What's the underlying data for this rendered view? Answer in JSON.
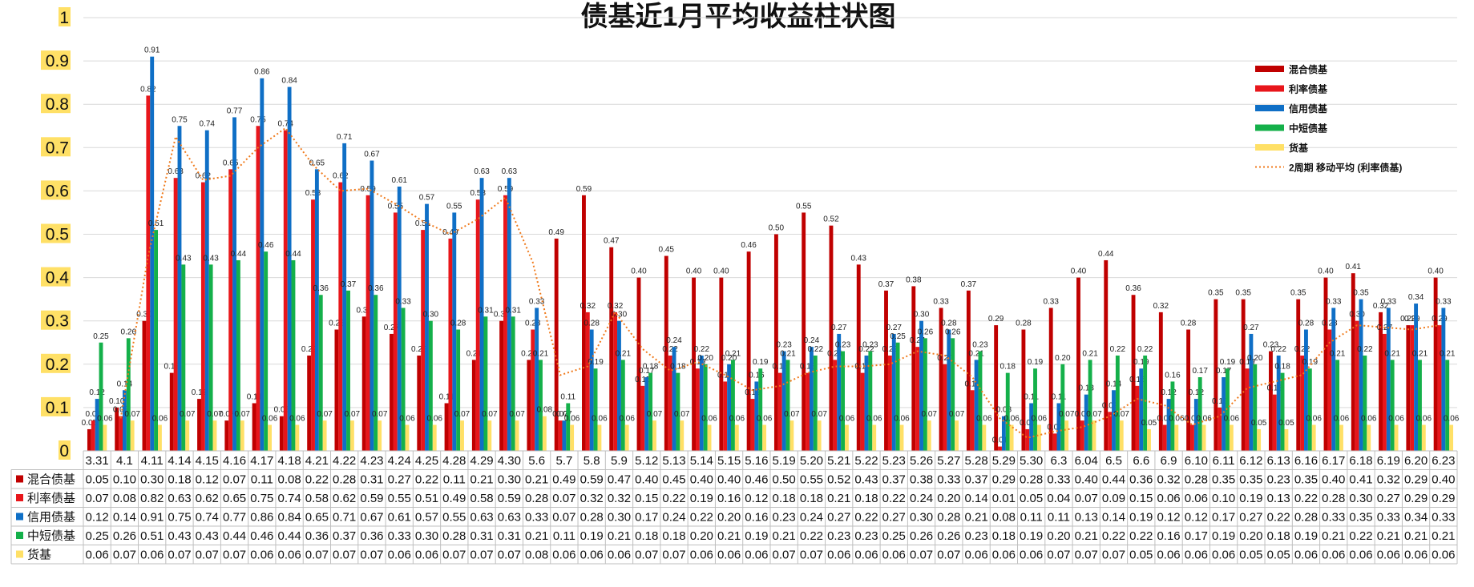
{
  "chart_data": {
    "type": "bar",
    "title": "债基近1月平均收益柱状图",
    "ylim": [
      0,
      1
    ],
    "yticks": [
      "0",
      "0.1",
      "0.2",
      "0.3",
      "0.4",
      "0.5",
      "0.6",
      "0.7",
      "0.8",
      "0.9",
      "1"
    ],
    "grid": true,
    "legend_position": "top-right",
    "categories": [
      "3.31",
      "4.1",
      "4.11",
      "4.14",
      "4.15",
      "4.16",
      "4.17",
      "4.18",
      "4.21",
      "4.22",
      "4.23",
      "4.24",
      "4.25",
      "4.28",
      "4.29",
      "4.30",
      "5.6",
      "5.7",
      "5.8",
      "5.9",
      "5.12",
      "5.13",
      "5.14",
      "5.15",
      "5.16",
      "5.19",
      "5.20",
      "5.21",
      "5.22",
      "5.23",
      "5.26",
      "5.27",
      "5.28",
      "5.29",
      "5.30",
      "6.3",
      "6.04",
      "6.5",
      "6.6",
      "6.9",
      "6.10",
      "6.11",
      "6.12",
      "6.13",
      "6.16",
      "6.17",
      "6.18",
      "6.19",
      "6.20",
      "6.23"
    ],
    "series": [
      {
        "name": "混合债基",
        "color": "#c00000",
        "values": [
          0.05,
          0.1,
          0.3,
          0.18,
          0.12,
          0.07,
          0.11,
          0.08,
          0.22,
          0.28,
          0.31,
          0.27,
          0.22,
          0.11,
          0.21,
          0.3,
          0.21,
          0.49,
          0.59,
          0.47,
          0.4,
          0.45,
          0.4,
          0.4,
          0.46,
          0.5,
          0.55,
          0.52,
          0.43,
          0.37,
          0.38,
          0.33,
          0.37,
          0.29,
          0.28,
          0.33,
          0.4,
          0.44,
          0.36,
          0.32,
          0.28,
          0.35,
          0.35,
          0.23,
          0.35,
          0.4,
          0.41,
          0.32,
          0.29,
          0.4
        ],
        "labels": [
          "0.05",
          "0.10",
          "0.30",
          "0.18",
          "0.12",
          "0.07",
          "0.11",
          "0.08",
          "0.22",
          "0.28",
          "0.31",
          "0.27",
          "0.22",
          "0.11",
          "0.21",
          "0.30",
          "0.21",
          "0.49",
          "0.59",
          "0.47",
          "0.40",
          "0.45",
          "0.40",
          "0.40",
          "0.46",
          "0.50",
          "0.55",
          "0.52",
          "0.43",
          "0.37",
          "0.38",
          "0.33",
          "0.37",
          "0.29",
          "0.28",
          "0.33",
          "0.40",
          "0.44",
          "0.36",
          "0.32",
          "0.28",
          "0.35",
          "0.35",
          "0.23",
          "0.35",
          "0.40",
          "0.41",
          "0.32",
          "0.29",
          "0.40"
        ]
      },
      {
        "name": "利率债基",
        "color": "#e8161b",
        "values": [
          0.07,
          0.08,
          0.82,
          0.63,
          0.62,
          0.65,
          0.75,
          0.74,
          0.58,
          0.62,
          0.59,
          0.55,
          0.51,
          0.49,
          0.58,
          0.59,
          0.28,
          0.07,
          0.32,
          0.32,
          0.15,
          0.22,
          0.19,
          0.16,
          0.12,
          0.18,
          0.18,
          0.21,
          0.18,
          0.22,
          0.24,
          0.2,
          0.14,
          0.01,
          0.05,
          0.04,
          0.07,
          0.09,
          0.15,
          0.06,
          0.06,
          0.1,
          0.19,
          0.13,
          0.22,
          0.28,
          0.3,
          0.27,
          0.29,
          0.29
        ],
        "labels": [
          "0.07",
          "0.08",
          "0.82",
          "0.63",
          "0.62",
          "0.65",
          "0.75",
          "0.74",
          "0.58",
          "0.62",
          "0.59",
          "0.55",
          "0.51",
          "0.49",
          "0.58",
          "0.59",
          "0.28",
          "0.07",
          "0.32",
          "0.32",
          "0.15",
          "0.22",
          "0.19",
          "0.16",
          "0.12",
          "0.18",
          "0.18",
          "0.21",
          "0.18",
          "0.22",
          "0.24",
          "0.20",
          "0.14",
          "0.01",
          "0.05",
          "0.04",
          "0.07",
          "0.09",
          "0.15",
          "0.06",
          "0.06",
          "0.10",
          "0.19",
          "0.13",
          "0.22",
          "0.28",
          "0.30",
          "0.27",
          "0.29",
          "0.29"
        ]
      },
      {
        "name": "信用债基",
        "color": "#0f6fc6",
        "values": [
          0.12,
          0.14,
          0.91,
          0.75,
          0.74,
          0.77,
          0.86,
          0.84,
          0.65,
          0.71,
          0.67,
          0.61,
          0.57,
          0.55,
          0.63,
          0.63,
          0.33,
          0.07,
          0.28,
          0.3,
          0.17,
          0.24,
          0.22,
          0.2,
          0.16,
          0.23,
          0.24,
          0.27,
          0.22,
          0.27,
          0.3,
          0.28,
          0.21,
          0.08,
          0.11,
          0.11,
          0.13,
          0.14,
          0.19,
          0.12,
          0.12,
          0.17,
          0.27,
          0.22,
          0.28,
          0.33,
          0.35,
          0.33,
          0.34,
          0.33
        ],
        "labels": [
          "0.12",
          "0.14",
          "0.91",
          "0.75",
          "0.74",
          "0.77",
          "0.86",
          "0.84",
          "0.65",
          "0.71",
          "0.67",
          "0.61",
          "0.57",
          "0.55",
          "0.63",
          "0.63",
          "0.33",
          "0.07",
          "0.28",
          "0.30",
          "0.17",
          "0.24",
          "0.22",
          "0.20",
          "0.16",
          "0.23",
          "0.24",
          "0.27",
          "0.22",
          "0.27",
          "0.30",
          "0.28",
          "0.21",
          "0.08",
          "0.11",
          "0.11",
          "0.13",
          "0.14",
          "0.19",
          "0.12",
          "0.12",
          "0.17",
          "0.27",
          "0.22",
          "0.28",
          "0.33",
          "0.35",
          "0.33",
          "0.34",
          "0.33"
        ]
      },
      {
        "name": "中短债基",
        "color": "#14b04a",
        "values": [
          0.25,
          0.26,
          0.51,
          0.43,
          0.43,
          0.44,
          0.46,
          0.44,
          0.36,
          0.37,
          0.36,
          0.33,
          0.3,
          0.28,
          0.31,
          0.31,
          0.21,
          0.11,
          0.19,
          0.21,
          0.18,
          0.18,
          0.2,
          0.21,
          0.19,
          0.21,
          0.22,
          0.23,
          0.23,
          0.25,
          0.26,
          0.26,
          0.23,
          0.18,
          0.19,
          0.2,
          0.21,
          0.22,
          0.22,
          0.16,
          0.17,
          0.19,
          0.2,
          0.18,
          0.19,
          0.21,
          0.22,
          0.21,
          0.21,
          0.21
        ],
        "labels": [
          "0.25",
          "0.26",
          "0.51",
          "0.43",
          "0.43",
          "0.44",
          "0.46",
          "0.44",
          "0.36",
          "0.37",
          "0.36",
          "0.33",
          "0.30",
          "0.28",
          "0.31",
          "0.31",
          "0.21",
          "0.11",
          "0.19",
          "0.21",
          "0.18",
          "0.18",
          "0.20",
          "0.21",
          "0.19",
          "0.21",
          "0.22",
          "0.23",
          "0.23",
          "0.25",
          "0.26",
          "0.26",
          "0.23",
          "0.18",
          "0.19",
          "0.20",
          "0.21",
          "0.22",
          "0.22",
          "0.16",
          "0.17",
          "0.19",
          "0.20",
          "0.18",
          "0.19",
          "0.21",
          "0.22",
          "0.21",
          "0.21",
          "0.21"
        ]
      },
      {
        "name": "货基",
        "color": "#ffe066",
        "values": [
          0.06,
          0.07,
          0.06,
          0.07,
          0.07,
          0.07,
          0.06,
          0.06,
          0.07,
          0.07,
          0.07,
          0.06,
          0.06,
          0.07,
          0.07,
          0.07,
          0.08,
          0.06,
          0.06,
          0.06,
          0.07,
          0.07,
          0.06,
          0.06,
          0.06,
          0.07,
          0.07,
          0.06,
          0.06,
          0.06,
          0.07,
          0.07,
          0.06,
          0.06,
          0.06,
          0.07,
          0.07,
          0.07,
          0.05,
          0.06,
          0.06,
          0.06,
          0.05,
          0.05,
          0.06,
          0.06,
          0.06,
          0.06,
          0.06,
          0.06
        ],
        "labels": [
          "0.06",
          "0.07",
          "0.06",
          "0.07",
          "0.07",
          "0.07",
          "0.06",
          "0.06",
          "0.07",
          "0.07",
          "0.07",
          "0.06",
          "0.06",
          "0.07",
          "0.07",
          "0.07",
          "0.08",
          "0.06",
          "0.06",
          "0.06",
          "0.07",
          "0.07",
          "0.06",
          "0.06",
          "0.06",
          "0.07",
          "0.07",
          "0.06",
          "0.06",
          "0.06",
          "0.07",
          "0.07",
          "0.06",
          "0.06",
          "0.06",
          "0.07",
          "0.07",
          "0.07",
          "0.05",
          "0.06",
          "0.06",
          "0.06",
          "0.05",
          "0.05",
          "0.06",
          "0.06",
          "0.06",
          "0.06",
          "0.06",
          "0.06"
        ]
      }
    ],
    "trendline": {
      "name": "2周期 移动平均 (利率债基)",
      "type": "moving_average",
      "period": 2,
      "source_series": "利率债基",
      "color": "#f07a1c"
    },
    "data_table": true
  }
}
